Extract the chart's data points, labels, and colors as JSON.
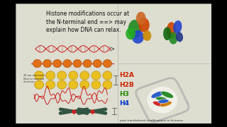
{
  "bg_color": "#000000",
  "slide_bg": "#ddddd0",
  "title_text": "Histone modifications occur at\nthe N-terminal end ==> may\nexplain how DNA can relax.",
  "title_fontsize": 5.5,
  "title_color": "#111111",
  "h2a_text": "H2A",
  "h2b_text": "H2B",
  "h3_text": "H3",
  "h4_text": "H4",
  "label_colors": [
    "#cc2200",
    "#cc2200",
    "#228800",
    "#0033cc"
  ],
  "label_fontsize": 6.5
}
